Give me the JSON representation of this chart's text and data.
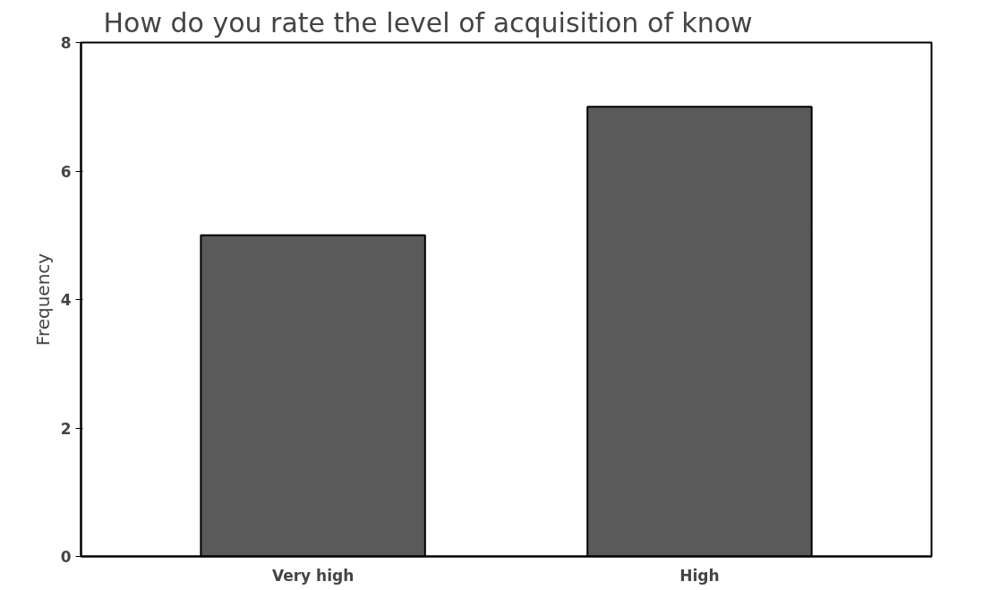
{
  "chart_data": {
    "type": "bar",
    "title": "How do you rate the level of acquisition of know",
    "ylabel": "Frequency",
    "categories": [
      "Very high",
      "High"
    ],
    "values": [
      5,
      7
    ],
    "color": "#5a5a5a",
    "ylim": [
      0,
      8
    ],
    "yticks": [
      0,
      2,
      4,
      6,
      8
    ],
    "grid": false
  }
}
